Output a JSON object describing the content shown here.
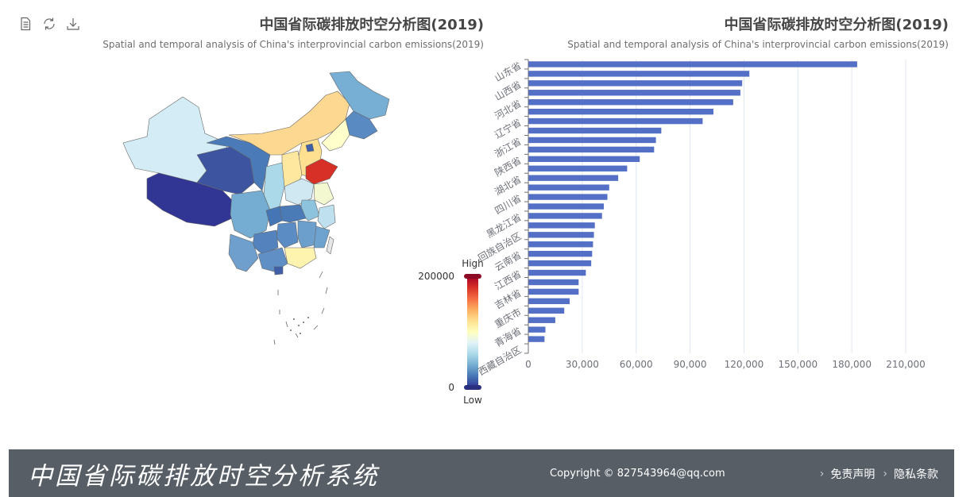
{
  "toolbox": {
    "items": [
      {
        "icon": "data-view-icon"
      },
      {
        "icon": "restore-icon"
      },
      {
        "icon": "save-image-icon"
      }
    ]
  },
  "map_title": {
    "main": "中国省际碳排放时空分析图(2019)",
    "sub": "Spatial and temporal analysis of China's interprovincial carbon emissions(2019)"
  },
  "bar_title": {
    "main": "中国省际碳排放时空分析图(2019)",
    "sub": "Spatial and temporal analysis of China's interprovincial carbon emissions(2019)"
  },
  "visual_map": {
    "high_label": "High",
    "low_label": "Low",
    "max": "200000",
    "min": "0",
    "colors": [
      "#313695",
      "#4575b4",
      "#74add1",
      "#abd9e9",
      "#e0f3f8",
      "#ffffbf",
      "#fee090",
      "#fdae61",
      "#f46d43",
      "#d73027",
      "#a50026"
    ]
  },
  "chart_data": [
    {
      "type": "bar",
      "orientation": "horizontal",
      "categories": [
        "山东省",
        "",
        "山西省",
        "",
        "河北省",
        "",
        "辽宁省",
        "",
        "浙江省",
        "",
        "陕西省",
        "",
        "湖北省",
        "",
        "四川省",
        "",
        "黑龙江省",
        "",
        "宁夏回族自治区",
        "",
        "云南省",
        "",
        "江西省",
        "",
        "吉林省",
        "",
        "重庆市",
        "",
        "青海省",
        "",
        "西藏自治区"
      ],
      "values": [
        183000,
        123000,
        119000,
        118000,
        114000,
        103000,
        97000,
        74000,
        71000,
        70000,
        62000,
        55000,
        50000,
        45000,
        44000,
        42000,
        41000,
        37000,
        36500,
        36000,
        35500,
        35000,
        32000,
        28000,
        28000,
        23000,
        20000,
        15000,
        9500,
        9000,
        null
      ],
      "xlim": [
        0,
        210000
      ],
      "xticks": [
        "0",
        "30,000",
        "60,000",
        "90,000",
        "120,000",
        "150,000",
        "180,000",
        "210,000"
      ],
      "ylabels_shown": [
        "山东省",
        "山西省",
        "河北省",
        "辽宁省",
        "浙江省",
        "陕西省",
        "湖北省",
        "四川省",
        "黑龙江省",
        "回族自治区",
        "云南省",
        "江西省",
        "吉林省",
        "重庆市",
        "青海省",
        "西藏自治区"
      ],
      "color": "#5470c6",
      "grid": true
    }
  ],
  "footer": {
    "logo": "中国省际碳排放时空分析系统",
    "copyright": "Copyright © 827543964@qq.com",
    "links": [
      {
        "label": "免责声明"
      },
      {
        "label": "隐私条款"
      }
    ]
  }
}
